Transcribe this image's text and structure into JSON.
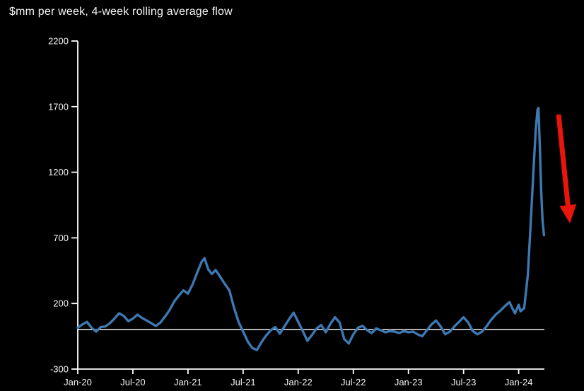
{
  "page": {
    "background": "#000000"
  },
  "chart_data": {
    "type": "line",
    "title": "$mm per week, 4-week rolling average flow",
    "xlabel": "",
    "ylabel": "",
    "x_unit": "months since Jan-2020",
    "xlim": [
      0,
      50.8
    ],
    "ylim": [
      -300,
      2200
    ],
    "yticks": [
      -300,
      200,
      700,
      1200,
      1700,
      2200
    ],
    "xticks": [
      {
        "x": 0,
        "label": "Jan-20"
      },
      {
        "x": 6,
        "label": "Jul-20"
      },
      {
        "x": 12,
        "label": "Jan-21"
      },
      {
        "x": 18,
        "label": "Jul-21"
      },
      {
        "x": 24,
        "label": "Jan-22"
      },
      {
        "x": 30,
        "label": "Jul-22"
      },
      {
        "x": 36,
        "label": "Jan-23"
      },
      {
        "x": 42,
        "label": "Jul-23"
      },
      {
        "x": 48,
        "label": "Jan-24"
      }
    ],
    "grid": false,
    "zero_line": true,
    "legend": "none",
    "background": "#000000",
    "axis_color": "#ffffff",
    "text_color": "#f5f5f5",
    "series": [
      {
        "name": "4-week rolling average flow",
        "color": "#3d78b2",
        "points": [
          [
            0,
            15
          ],
          [
            0.5,
            40
          ],
          [
            1,
            60
          ],
          [
            1.5,
            15
          ],
          [
            2,
            -15
          ],
          [
            2.5,
            20
          ],
          [
            3,
            25
          ],
          [
            3.5,
            50
          ],
          [
            4,
            85
          ],
          [
            4.5,
            125
          ],
          [
            5,
            105
          ],
          [
            5.5,
            65
          ],
          [
            6,
            85
          ],
          [
            6.5,
            115
          ],
          [
            7,
            90
          ],
          [
            7.5,
            70
          ],
          [
            8,
            50
          ],
          [
            8.5,
            28
          ],
          [
            9,
            55
          ],
          [
            9.5,
            100
          ],
          [
            10,
            150
          ],
          [
            10.5,
            215
          ],
          [
            11,
            260
          ],
          [
            11.5,
            300
          ],
          [
            12,
            275
          ],
          [
            12.5,
            345
          ],
          [
            13,
            435
          ],
          [
            13.5,
            520
          ],
          [
            13.8,
            545
          ],
          [
            14.2,
            460
          ],
          [
            14.6,
            425
          ],
          [
            15,
            455
          ],
          [
            15.4,
            415
          ],
          [
            16,
            350
          ],
          [
            16.5,
            300
          ],
          [
            17,
            170
          ],
          [
            17.5,
            60
          ],
          [
            18,
            -15
          ],
          [
            18.5,
            -90
          ],
          [
            19,
            -140
          ],
          [
            19.5,
            -155
          ],
          [
            20,
            -95
          ],
          [
            20.5,
            -45
          ],
          [
            21,
            -5
          ],
          [
            21.5,
            20
          ],
          [
            22,
            -30
          ],
          [
            22.5,
            25
          ],
          [
            23,
            80
          ],
          [
            23.5,
            130
          ],
          [
            24,
            60
          ],
          [
            24.5,
            -10
          ],
          [
            25,
            -85
          ],
          [
            25.5,
            -40
          ],
          [
            26,
            10
          ],
          [
            26.5,
            35
          ],
          [
            27,
            -20
          ],
          [
            27.5,
            45
          ],
          [
            28,
            95
          ],
          [
            28.5,
            55
          ],
          [
            29,
            -70
          ],
          [
            29.5,
            -105
          ],
          [
            30,
            -35
          ],
          [
            30.5,
            15
          ],
          [
            31,
            30
          ],
          [
            31.5,
            -5
          ],
          [
            32,
            -25
          ],
          [
            32.5,
            10
          ],
          [
            33,
            -5
          ],
          [
            33.5,
            -20
          ],
          [
            34,
            -10
          ],
          [
            34.5,
            -15
          ],
          [
            35,
            -25
          ],
          [
            35.5,
            -10
          ],
          [
            36,
            -20
          ],
          [
            36.5,
            -15
          ],
          [
            37,
            -35
          ],
          [
            37.5,
            -50
          ],
          [
            38,
            -5
          ],
          [
            38.5,
            40
          ],
          [
            39,
            70
          ],
          [
            39.5,
            25
          ],
          [
            40,
            -35
          ],
          [
            40.5,
            -15
          ],
          [
            41,
            25
          ],
          [
            41.5,
            60
          ],
          [
            42,
            95
          ],
          [
            42.5,
            55
          ],
          [
            43,
            -10
          ],
          [
            43.5,
            -35
          ],
          [
            44,
            -15
          ],
          [
            44.5,
            25
          ],
          [
            45,
            75
          ],
          [
            45.5,
            115
          ],
          [
            46,
            145
          ],
          [
            46.5,
            180
          ],
          [
            47,
            210
          ],
          [
            47.3,
            165
          ],
          [
            47.6,
            125
          ],
          [
            48,
            190
          ],
          [
            48.2,
            140
          ],
          [
            48.6,
            165
          ],
          [
            49,
            420
          ],
          [
            49.3,
            800
          ],
          [
            49.6,
            1200
          ],
          [
            49.85,
            1520
          ],
          [
            50.05,
            1680
          ],
          [
            50.15,
            1690
          ],
          [
            50.3,
            1400
          ],
          [
            50.45,
            1050
          ],
          [
            50.6,
            830
          ],
          [
            50.75,
            720
          ]
        ]
      }
    ],
    "annotation_arrow": {
      "meaning": "sharp-drop-callout",
      "color": "#e8150d",
      "x1": 790,
      "y1": 162,
      "x2": 806,
      "y2": 316
    }
  }
}
